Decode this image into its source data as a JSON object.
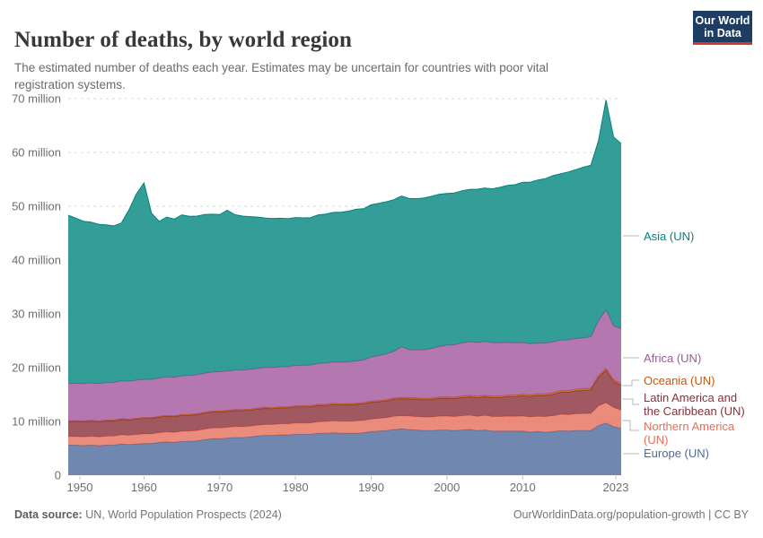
{
  "header": {
    "title": "Number of deaths, by world region",
    "subtitle": "The estimated number of deaths each year. Estimates may be uncertain for countries with poor vital registration systems.",
    "logo": {
      "line1": "Our World",
      "line2": "in Data",
      "bg_color": "#1d3d63",
      "accent_color": "#d0392e"
    }
  },
  "footer": {
    "source_label": "Data source:",
    "source_value": " UN, World Population Prospects (2024)",
    "credit": "OurWorldinData.org/population-growth | CC BY"
  },
  "chart_data": {
    "type": "area",
    "stacked": true,
    "grid": true,
    "legend_position": "right",
    "unit": "million deaths",
    "ylim": [
      0,
      70
    ],
    "x": [
      1950,
      1951,
      1952,
      1953,
      1954,
      1955,
      1956,
      1957,
      1958,
      1959,
      1960,
      1961,
      1962,
      1963,
      1964,
      1965,
      1966,
      1967,
      1968,
      1969,
      1970,
      1971,
      1972,
      1973,
      1974,
      1975,
      1976,
      1977,
      1978,
      1979,
      1980,
      1981,
      1982,
      1983,
      1984,
      1985,
      1986,
      1987,
      1988,
      1989,
      1990,
      1991,
      1992,
      1993,
      1994,
      1995,
      1996,
      1997,
      1998,
      1999,
      2000,
      2001,
      2002,
      2003,
      2004,
      2005,
      2006,
      2007,
      2008,
      2009,
      2010,
      2011,
      2012,
      2013,
      2014,
      2015,
      2016,
      2017,
      2018,
      2019,
      2020,
      2021,
      2022,
      2023
    ],
    "x_ticks": [
      {
        "year": 1950,
        "label": "1950"
      },
      {
        "year": 1960,
        "label": "1960"
      },
      {
        "year": 1970,
        "label": "1970"
      },
      {
        "year": 1980,
        "label": "1980"
      },
      {
        "year": 1990,
        "label": "1990"
      },
      {
        "year": 2000,
        "label": "2000"
      },
      {
        "year": 2010,
        "label": "2010"
      },
      {
        "year": 2023,
        "label": "2023"
      }
    ],
    "y_ticks": [
      {
        "value": 0,
        "label": "0"
      },
      {
        "value": 10,
        "label": "10 million"
      },
      {
        "value": 20,
        "label": "20 million"
      },
      {
        "value": 30,
        "label": "30 million"
      },
      {
        "value": 40,
        "label": "40 million"
      },
      {
        "value": 50,
        "label": "50 million"
      },
      {
        "value": 60,
        "label": "60 million"
      },
      {
        "value": 70,
        "label": "70 million"
      }
    ],
    "series": [
      {
        "key": "europe",
        "legend_label": "Europe (UN)",
        "label_lines": [
          "Europe (UN)"
        ],
        "color": "#4C6A9C",
        "values": [
          5.6,
          5.6,
          5.5,
          5.6,
          5.5,
          5.6,
          5.6,
          5.8,
          5.7,
          5.8,
          5.9,
          5.9,
          6.1,
          6.2,
          6.1,
          6.3,
          6.3,
          6.4,
          6.6,
          6.8,
          6.8,
          6.9,
          7.0,
          7.0,
          7.1,
          7.3,
          7.4,
          7.4,
          7.5,
          7.5,
          7.6,
          7.6,
          7.6,
          7.8,
          7.8,
          7.9,
          7.8,
          7.8,
          7.8,
          7.9,
          8.1,
          8.2,
          8.3,
          8.5,
          8.6,
          8.5,
          8.4,
          8.3,
          8.3,
          8.4,
          8.4,
          8.3,
          8.4,
          8.5,
          8.3,
          8.4,
          8.2,
          8.2,
          8.2,
          8.2,
          8.2,
          8.0,
          8.1,
          8.0,
          8.1,
          8.3,
          8.2,
          8.3,
          8.3,
          8.3,
          9.2,
          9.7,
          9.0,
          8.7
        ]
      },
      {
        "key": "northern_america",
        "legend_label": "Northern America (UN)",
        "label_lines": [
          "Northern America",
          "(UN)"
        ],
        "color": "#E56E5A",
        "values": [
          1.6,
          1.62,
          1.63,
          1.65,
          1.63,
          1.66,
          1.68,
          1.72,
          1.73,
          1.76,
          1.79,
          1.78,
          1.82,
          1.86,
          1.86,
          1.89,
          1.92,
          1.92,
          1.98,
          1.99,
          2.0,
          2.0,
          2.04,
          2.05,
          2.03,
          2.02,
          2.04,
          2.03,
          2.06,
          2.06,
          2.12,
          2.12,
          2.12,
          2.16,
          2.18,
          2.21,
          2.23,
          2.25,
          2.3,
          2.31,
          2.34,
          2.36,
          2.38,
          2.46,
          2.47,
          2.5,
          2.5,
          2.51,
          2.53,
          2.58,
          2.6,
          2.62,
          2.66,
          2.67,
          2.66,
          2.71,
          2.71,
          2.72,
          2.78,
          2.76,
          2.8,
          2.85,
          2.87,
          2.92,
          2.96,
          3.03,
          3.06,
          3.12,
          3.15,
          3.18,
          3.7,
          3.8,
          3.6,
          3.4
        ]
      },
      {
        "key": "latin_america",
        "legend_label": "Latin America and the Caribbean (UN)",
        "label_lines": [
          "Latin America and",
          "the Caribbean (UN)"
        ],
        "color": "#883039",
        "values": [
          2.8,
          2.8,
          2.81,
          2.81,
          2.8,
          2.82,
          2.82,
          2.85,
          2.83,
          2.86,
          2.88,
          2.88,
          2.89,
          2.9,
          2.92,
          2.92,
          2.93,
          2.93,
          2.95,
          2.96,
          2.97,
          2.96,
          2.97,
          2.97,
          2.96,
          2.97,
          2.97,
          2.96,
          2.96,
          2.96,
          2.98,
          2.98,
          2.99,
          3.01,
          3.0,
          3.02,
          3.03,
          3.05,
          3.07,
          3.08,
          3.1,
          3.11,
          3.13,
          3.16,
          3.17,
          3.19,
          3.21,
          3.23,
          3.27,
          3.3,
          3.31,
          3.34,
          3.38,
          3.42,
          3.44,
          3.49,
          3.52,
          3.56,
          3.62,
          3.67,
          3.76,
          3.8,
          3.86,
          3.92,
          3.99,
          4.08,
          4.18,
          4.24,
          4.32,
          4.4,
          5.3,
          6.0,
          4.8,
          4.6
        ]
      },
      {
        "key": "oceania",
        "legend_label": "Oceania (UN)",
        "label_lines": [
          "Oceania (UN)"
        ],
        "color": "#BE5915",
        "values": [
          0.14,
          0.14,
          0.14,
          0.14,
          0.15,
          0.15,
          0.15,
          0.15,
          0.15,
          0.16,
          0.16,
          0.16,
          0.16,
          0.17,
          0.17,
          0.17,
          0.17,
          0.17,
          0.18,
          0.18,
          0.18,
          0.18,
          0.19,
          0.19,
          0.19,
          0.19,
          0.19,
          0.2,
          0.2,
          0.2,
          0.2,
          0.21,
          0.21,
          0.21,
          0.21,
          0.22,
          0.22,
          0.22,
          0.22,
          0.23,
          0.23,
          0.23,
          0.23,
          0.24,
          0.24,
          0.24,
          0.24,
          0.25,
          0.25,
          0.25,
          0.26,
          0.26,
          0.26,
          0.27,
          0.27,
          0.27,
          0.28,
          0.28,
          0.28,
          0.29,
          0.29,
          0.29,
          0.3,
          0.3,
          0.31,
          0.31,
          0.32,
          0.32,
          0.33,
          0.33,
          0.34,
          0.35,
          0.35,
          0.35
        ]
      },
      {
        "key": "africa",
        "legend_label": "Africa (UN)",
        "label_lines": [
          "Africa (UN)"
        ],
        "color": "#A2559C",
        "values": [
          6.9,
          6.92,
          6.94,
          6.95,
          6.97,
          7.0,
          7.0,
          7.03,
          7.05,
          7.08,
          7.1,
          7.1,
          7.12,
          7.14,
          7.16,
          7.2,
          7.22,
          7.24,
          7.25,
          7.28,
          7.3,
          7.31,
          7.33,
          7.36,
          7.38,
          7.4,
          7.41,
          7.42,
          7.44,
          7.46,
          7.5,
          7.53,
          7.56,
          7.62,
          7.66,
          7.7,
          7.72,
          7.76,
          7.84,
          7.92,
          8.2,
          8.35,
          8.5,
          8.65,
          9.4,
          8.9,
          8.95,
          9.05,
          9.2,
          9.4,
          9.6,
          9.75,
          9.88,
          9.98,
          10.0,
          10.0,
          9.92,
          9.85,
          9.78,
          9.68,
          9.6,
          9.52,
          9.45,
          9.4,
          9.42,
          9.4,
          9.4,
          9.42,
          9.45,
          9.5,
          10.2,
          10.9,
          10.0,
          10.2
        ]
      },
      {
        "key": "asia",
        "legend_label": "Asia (UN)",
        "label_lines": [
          "Asia (UN)"
        ],
        "color": "#00847E",
        "values": [
          31.3,
          30.7,
          30.2,
          29.9,
          29.6,
          29.3,
          29.1,
          29.3,
          31.8,
          34.6,
          36.5,
          30.9,
          29.1,
          29.7,
          29.4,
          29.9,
          29.6,
          29.5,
          29.5,
          29.3,
          29.2,
          29.9,
          28.9,
          28.6,
          28.4,
          28.1,
          27.8,
          27.7,
          27.6,
          27.5,
          27.5,
          27.4,
          27.4,
          27.6,
          27.7,
          27.8,
          27.9,
          28.0,
          28.2,
          28.1,
          28.3,
          28.3,
          28.3,
          28.2,
          28.0,
          28.1,
          28.1,
          28.2,
          28.3,
          28.3,
          28.2,
          28.2,
          28.3,
          28.3,
          28.5,
          28.5,
          28.6,
          28.9,
          29.2,
          29.4,
          29.8,
          30.0,
          30.3,
          30.6,
          30.9,
          30.9,
          31.2,
          31.4,
          31.7,
          31.9,
          33.4,
          39.0,
          35.1,
          34.4
        ]
      }
    ]
  }
}
